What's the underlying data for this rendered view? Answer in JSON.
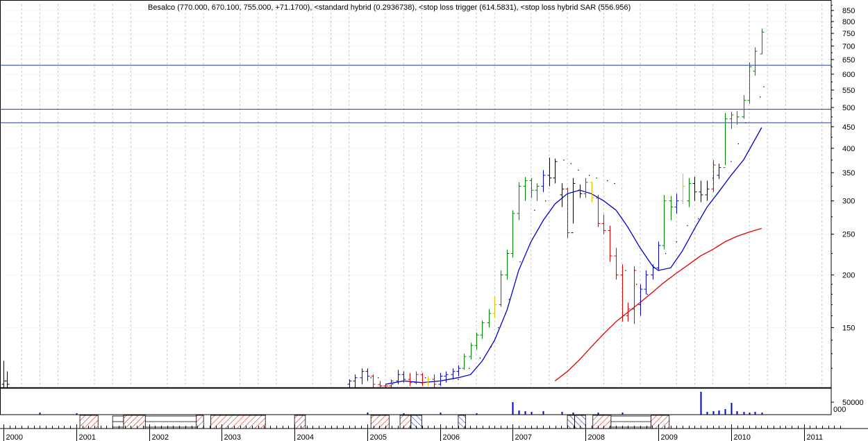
{
  "chart_data": {
    "type": "bar",
    "subtype": "ohlc",
    "title": "Besalco (770.000, 670.100, 755.000, +71.1700), <standard hybrid (0.2936738), <stop loss trigger (614.5831), <stop loss hybrid SAR (556.956)",
    "y_scale": "log",
    "ylim": [
      108,
      880
    ],
    "x_range": [
      2000.0,
      2011.5
    ],
    "y_ticks": [
      850,
      800,
      750,
      700,
      650,
      600,
      550,
      500,
      450,
      400,
      350,
      300,
      250,
      200,
      150
    ],
    "x_ticks": [
      {
        "label": "2000",
        "x": 2000.0
      },
      {
        "label": "2001",
        "x": 2001.0
      },
      {
        "label": "2002",
        "x": 2002.0
      },
      {
        "label": "2003",
        "x": 2003.0
      },
      {
        "label": "2004",
        "x": 2004.0
      },
      {
        "label": "2005",
        "x": 2005.0
      },
      {
        "label": "2006",
        "x": 2006.0
      },
      {
        "label": "2007",
        "x": 2007.0
      },
      {
        "label": "2008",
        "x": 2008.0
      },
      {
        "label": "2009",
        "x": 2009.0
      },
      {
        "label": "2010",
        "x": 2010.0
      },
      {
        "label": "2011",
        "x": 2011.0
      }
    ],
    "horizontal_lines": [
      630,
      495,
      460
    ],
    "bars": [
      {
        "x": 2000.0,
        "o": 110,
        "h": 125,
        "l": 108,
        "c": 112,
        "color": "#000000"
      },
      {
        "x": 2000.05,
        "o": 112,
        "h": 118,
        "l": 108,
        "c": 110,
        "color": "#000000"
      },
      {
        "x": 2004.75,
        "o": 110,
        "h": 113,
        "l": 108,
        "c": 112,
        "color": "#0000cc"
      },
      {
        "x": 2004.83,
        "o": 112,
        "h": 116,
        "l": 108,
        "c": 114,
        "color": "#0000cc"
      },
      {
        "x": 2004.92,
        "o": 114,
        "h": 120,
        "l": 110,
        "c": 118,
        "color": "#0000cc"
      },
      {
        "x": 2005.0,
        "o": 118,
        "h": 120,
        "l": 112,
        "c": 115,
        "color": "#0000cc"
      },
      {
        "x": 2005.08,
        "o": 115,
        "h": 116,
        "l": 108,
        "c": 110,
        "color": "#dd0000"
      },
      {
        "x": 2005.17,
        "o": 110,
        "h": 112,
        "l": 108,
        "c": 109,
        "color": "#dd0000"
      },
      {
        "x": 2005.25,
        "o": 109,
        "h": 110,
        "l": 108,
        "c": 109,
        "color": "#dd0000"
      },
      {
        "x": 2005.33,
        "o": 109,
        "h": 113,
        "l": 108,
        "c": 112,
        "color": "#dd0000"
      },
      {
        "x": 2005.42,
        "o": 112,
        "h": 119,
        "l": 110,
        "c": 116,
        "color": "#0000cc"
      },
      {
        "x": 2005.5,
        "o": 116,
        "h": 118,
        "l": 111,
        "c": 113,
        "color": "#0000cc"
      },
      {
        "x": 2005.58,
        "o": 113,
        "h": 117,
        "l": 109,
        "c": 111,
        "color": "#dd0000"
      },
      {
        "x": 2005.67,
        "o": 111,
        "h": 118,
        "l": 110,
        "c": 116,
        "color": "#dd0000"
      },
      {
        "x": 2005.75,
        "o": 116,
        "h": 117,
        "l": 109,
        "c": 111,
        "color": "#dd0000"
      },
      {
        "x": 2005.83,
        "o": 111,
        "h": 115,
        "l": 109,
        "c": 113,
        "color": "#e0c000"
      },
      {
        "x": 2005.92,
        "o": 113,
        "h": 116,
        "l": 108,
        "c": 110,
        "color": "#dd0000"
      },
      {
        "x": 2006.0,
        "o": 110,
        "h": 117,
        "l": 109,
        "c": 115,
        "color": "#0000cc"
      },
      {
        "x": 2006.08,
        "o": 115,
        "h": 118,
        "l": 111,
        "c": 116,
        "color": "#0000cc"
      },
      {
        "x": 2006.17,
        "o": 116,
        "h": 120,
        "l": 113,
        "c": 118,
        "color": "#0000cc"
      },
      {
        "x": 2006.25,
        "o": 118,
        "h": 122,
        "l": 115,
        "c": 120,
        "color": "#0000cc"
      },
      {
        "x": 2006.33,
        "o": 120,
        "h": 130,
        "l": 119,
        "c": 128,
        "color": "#008800"
      },
      {
        "x": 2006.42,
        "o": 128,
        "h": 138,
        "l": 126,
        "c": 136,
        "color": "#008800"
      },
      {
        "x": 2006.5,
        "o": 136,
        "h": 146,
        "l": 133,
        "c": 144,
        "color": "#008800"
      },
      {
        "x": 2006.58,
        "o": 144,
        "h": 156,
        "l": 141,
        "c": 154,
        "color": "#008800"
      },
      {
        "x": 2006.67,
        "o": 154,
        "h": 166,
        "l": 150,
        "c": 162,
        "color": "#008800"
      },
      {
        "x": 2006.75,
        "o": 162,
        "h": 178,
        "l": 158,
        "c": 170,
        "color": "#e0c000"
      },
      {
        "x": 2006.83,
        "o": 170,
        "h": 205,
        "l": 168,
        "c": 200,
        "color": "#008800"
      },
      {
        "x": 2006.92,
        "o": 200,
        "h": 230,
        "l": 195,
        "c": 225,
        "color": "#008800"
      },
      {
        "x": 2007.0,
        "o": 225,
        "h": 285,
        "l": 220,
        "c": 280,
        "color": "#008800"
      },
      {
        "x": 2007.08,
        "o": 280,
        "h": 332,
        "l": 270,
        "c": 325,
        "color": "#008800"
      },
      {
        "x": 2007.17,
        "o": 325,
        "h": 342,
        "l": 300,
        "c": 335,
        "color": "#008800"
      },
      {
        "x": 2007.25,
        "o": 335,
        "h": 340,
        "l": 305,
        "c": 318,
        "color": "#008800"
      },
      {
        "x": 2007.33,
        "o": 318,
        "h": 330,
        "l": 300,
        "c": 325,
        "color": "#008800"
      },
      {
        "x": 2007.42,
        "o": 325,
        "h": 355,
        "l": 315,
        "c": 345,
        "color": "#0000cc"
      },
      {
        "x": 2007.5,
        "o": 345,
        "h": 380,
        "l": 325,
        "c": 340,
        "color": "#000000"
      },
      {
        "x": 2007.58,
        "o": 340,
        "h": 378,
        "l": 330,
        "c": 372,
        "color": "#000000"
      },
      {
        "x": 2007.67,
        "o": 310,
        "h": 330,
        "l": 290,
        "c": 320,
        "color": "#000000"
      },
      {
        "x": 2007.75,
        "o": 320,
        "h": 322,
        "l": 245,
        "c": 252,
        "color": "#dd0000"
      },
      {
        "x": 2007.83,
        "o": 252,
        "h": 340,
        "l": 265,
        "c": 330,
        "color": "#000000"
      },
      {
        "x": 2007.92,
        "o": 318,
        "h": 328,
        "l": 305,
        "c": 312,
        "color": "#000000"
      },
      {
        "x": 2008.0,
        "o": 312,
        "h": 340,
        "l": 305,
        "c": 332,
        "color": "#008800"
      },
      {
        "x": 2008.08,
        "o": 332,
        "h": 333,
        "l": 298,
        "c": 305,
        "color": "#e0c000"
      },
      {
        "x": 2008.17,
        "o": 305,
        "h": 310,
        "l": 260,
        "c": 265,
        "color": "#dd0000"
      },
      {
        "x": 2008.25,
        "o": 265,
        "h": 278,
        "l": 250,
        "c": 255,
        "color": "#dd0000"
      },
      {
        "x": 2008.33,
        "o": 255,
        "h": 262,
        "l": 215,
        "c": 222,
        "color": "#dd0000"
      },
      {
        "x": 2008.42,
        "o": 222,
        "h": 232,
        "l": 195,
        "c": 200,
        "color": "#dd0000"
      },
      {
        "x": 2008.5,
        "o": 200,
        "h": 212,
        "l": 155,
        "c": 160,
        "color": "#dd0000"
      },
      {
        "x": 2008.58,
        "o": 160,
        "h": 172,
        "l": 155,
        "c": 166,
        "color": "#dd0000"
      },
      {
        "x": 2008.67,
        "o": 166,
        "h": 210,
        "l": 153,
        "c": 205,
        "color": "#dd0000"
      },
      {
        "x": 2008.75,
        "o": 170,
        "h": 190,
        "l": 160,
        "c": 185,
        "color": "#0000cc"
      },
      {
        "x": 2008.83,
        "o": 185,
        "h": 205,
        "l": 180,
        "c": 200,
        "color": "#0000cc"
      },
      {
        "x": 2008.92,
        "o": 200,
        "h": 212,
        "l": 195,
        "c": 208,
        "color": "#0000cc"
      },
      {
        "x": 2009.0,
        "o": 208,
        "h": 240,
        "l": 205,
        "c": 235,
        "color": "#0000cc"
      },
      {
        "x": 2009.08,
        "o": 235,
        "h": 310,
        "l": 230,
        "c": 300,
        "color": "#008800"
      },
      {
        "x": 2009.17,
        "o": 300,
        "h": 308,
        "l": 270,
        "c": 290,
        "color": "#008800"
      },
      {
        "x": 2009.25,
        "o": 290,
        "h": 312,
        "l": 280,
        "c": 300,
        "color": "#0000cc"
      },
      {
        "x": 2009.33,
        "o": 300,
        "h": 348,
        "l": 295,
        "c": 325,
        "color": "#e0c000"
      },
      {
        "x": 2009.42,
        "o": 300,
        "h": 340,
        "l": 290,
        "c": 330,
        "color": "#008800"
      },
      {
        "x": 2009.5,
        "o": 330,
        "h": 342,
        "l": 300,
        "c": 315,
        "color": "#000000"
      },
      {
        "x": 2009.58,
        "o": 315,
        "h": 335,
        "l": 298,
        "c": 310,
        "color": "#000000"
      },
      {
        "x": 2009.67,
        "o": 310,
        "h": 335,
        "l": 300,
        "c": 320,
        "color": "#000000"
      },
      {
        "x": 2009.75,
        "o": 320,
        "h": 375,
        "l": 315,
        "c": 365,
        "color": "#dd0000"
      },
      {
        "x": 2009.83,
        "o": 345,
        "h": 368,
        "l": 338,
        "c": 360,
        "color": "#0000cc"
      },
      {
        "x": 2009.92,
        "o": 360,
        "h": 485,
        "l": 365,
        "c": 470,
        "color": "#008800"
      },
      {
        "x": 2010.0,
        "o": 470,
        "h": 488,
        "l": 445,
        "c": 480,
        "color": "#008800"
      },
      {
        "x": 2010.08,
        "o": 460,
        "h": 490,
        "l": 455,
        "c": 475,
        "color": "#008800"
      },
      {
        "x": 2010.17,
        "o": 475,
        "h": 535,
        "l": 470,
        "c": 520,
        "color": "#008800"
      },
      {
        "x": 2010.25,
        "o": 520,
        "h": 640,
        "l": 510,
        "c": 625,
        "color": "#008800"
      },
      {
        "x": 2010.33,
        "o": 610,
        "h": 695,
        "l": 595,
        "c": 680,
        "color": "#008800"
      },
      {
        "x": 2010.42,
        "o": 670,
        "h": 770,
        "l": 670,
        "c": 755,
        "color": "#008800"
      }
    ],
    "blue_line": [
      [
        2005.25,
        110
      ],
      [
        2005.5,
        112
      ],
      [
        2005.75,
        111
      ],
      [
        2006.0,
        112
      ],
      [
        2006.25,
        114
      ],
      [
        2006.42,
        116
      ],
      [
        2006.58,
        125
      ],
      [
        2006.75,
        140
      ],
      [
        2006.92,
        165
      ],
      [
        2007.08,
        205
      ],
      [
        2007.25,
        240
      ],
      [
        2007.42,
        270
      ],
      [
        2007.58,
        295
      ],
      [
        2007.75,
        312
      ],
      [
        2007.92,
        318
      ],
      [
        2008.08,
        312
      ],
      [
        2008.25,
        300
      ],
      [
        2008.42,
        285
      ],
      [
        2008.58,
        260
      ],
      [
        2008.75,
        232
      ],
      [
        2008.92,
        210
      ],
      [
        2009.0,
        205
      ],
      [
        2009.17,
        208
      ],
      [
        2009.33,
        228
      ],
      [
        2009.5,
        258
      ],
      [
        2009.67,
        290
      ],
      [
        2009.83,
        315
      ],
      [
        2010.0,
        345
      ],
      [
        2010.17,
        375
      ],
      [
        2010.33,
        420
      ],
      [
        2010.42,
        448
      ]
    ],
    "red_line": [
      [
        2007.58,
        112
      ],
      [
        2007.75,
        118
      ],
      [
        2007.92,
        126
      ],
      [
        2008.08,
        135
      ],
      [
        2008.25,
        145
      ],
      [
        2008.42,
        155
      ],
      [
        2008.58,
        163
      ],
      [
        2008.75,
        172
      ],
      [
        2008.92,
        182
      ],
      [
        2009.08,
        192
      ],
      [
        2009.25,
        202
      ],
      [
        2009.42,
        212
      ],
      [
        2009.58,
        222
      ],
      [
        2009.75,
        230
      ],
      [
        2009.92,
        240
      ],
      [
        2010.08,
        247
      ],
      [
        2010.25,
        253
      ],
      [
        2010.42,
        258
      ]
    ],
    "sar_dots": [
      [
        2004.9,
        108
      ],
      [
        2005.05,
        114
      ],
      [
        2005.15,
        114
      ],
      [
        2005.35,
        110
      ],
      [
        2005.55,
        108
      ],
      [
        2005.8,
        114
      ],
      [
        2006.0,
        108
      ],
      [
        2006.25,
        113
      ],
      [
        2006.4,
        120
      ],
      [
        2006.55,
        127
      ],
      [
        2006.7,
        135
      ],
      [
        2006.8,
        150
      ],
      [
        2006.95,
        175
      ],
      [
        2007.1,
        215
      ],
      [
        2007.3,
        285
      ],
      [
        2007.45,
        300
      ],
      [
        2007.7,
        375
      ],
      [
        2007.8,
        368
      ],
      [
        2007.9,
        355
      ],
      [
        2008.05,
        345
      ],
      [
        2008.15,
        340
      ],
      [
        2008.3,
        335
      ],
      [
        2008.4,
        330
      ],
      [
        2008.55,
        205
      ],
      [
        2008.7,
        190
      ],
      [
        2008.85,
        180
      ],
      [
        2009.1,
        225
      ],
      [
        2009.25,
        240
      ],
      [
        2009.4,
        262
      ],
      [
        2009.55,
        272
      ],
      [
        2009.75,
        340
      ],
      [
        2010.0,
        372
      ],
      [
        2010.1,
        410
      ],
      [
        2010.2,
        460
      ],
      [
        2010.4,
        530
      ],
      [
        2010.45,
        560
      ]
    ],
    "volume_ticks": [
      50000
    ],
    "volume_bars": [
      [
        2000.5,
        3
      ],
      [
        2001.0,
        2
      ],
      [
        2005.0,
        3
      ],
      [
        2005.5,
        2
      ],
      [
        2006.0,
        3
      ],
      [
        2006.5,
        2
      ],
      [
        2007.0,
        18
      ],
      [
        2007.08,
        6
      ],
      [
        2007.17,
        5
      ],
      [
        2007.25,
        4
      ],
      [
        2007.42,
        5
      ],
      [
        2007.67,
        4
      ],
      [
        2007.83,
        3
      ],
      [
        2008.17,
        3
      ],
      [
        2008.5,
        3
      ],
      [
        2009.58,
        33
      ],
      [
        2009.67,
        4
      ],
      [
        2009.75,
        5
      ],
      [
        2009.83,
        6
      ],
      [
        2009.92,
        8
      ],
      [
        2010.0,
        17
      ],
      [
        2010.08,
        5
      ],
      [
        2010.17,
        4
      ],
      [
        2010.25,
        3
      ],
      [
        2010.33,
        4
      ],
      [
        2010.42,
        3
      ]
    ],
    "hatched_regions": [
      {
        "start": 2001.05,
        "end": 2001.3,
        "pattern": "red"
      },
      {
        "start": 2001.65,
        "end": 2001.95,
        "pattern": "red"
      },
      {
        "start": 2002.65,
        "end": 2002.75,
        "pattern": "red"
      },
      {
        "start": 2002.85,
        "end": 2003.6,
        "pattern": "red"
      },
      {
        "start": 2004.0,
        "end": 2004.15,
        "pattern": "red"
      },
      {
        "start": 2005.05,
        "end": 2005.3,
        "pattern": "red"
      },
      {
        "start": 2005.45,
        "end": 2005.6,
        "pattern": "red"
      },
      {
        "start": 2005.6,
        "end": 2005.75,
        "pattern": "blue"
      },
      {
        "start": 2006.25,
        "end": 2006.35,
        "pattern": "blue"
      },
      {
        "start": 2007.75,
        "end": 2007.85,
        "pattern": "blue"
      },
      {
        "start": 2007.85,
        "end": 2008.0,
        "pattern": "blue"
      },
      {
        "start": 2008.1,
        "end": 2008.35,
        "pattern": "red"
      },
      {
        "start": 2008.9,
        "end": 2009.15,
        "pattern": "red"
      }
    ],
    "box_regions": [
      {
        "start": 2001.5,
        "end": 2001.65
      },
      {
        "start": 2001.95,
        "end": 2002.65
      },
      {
        "start": 2008.35,
        "end": 2008.9
      }
    ]
  }
}
